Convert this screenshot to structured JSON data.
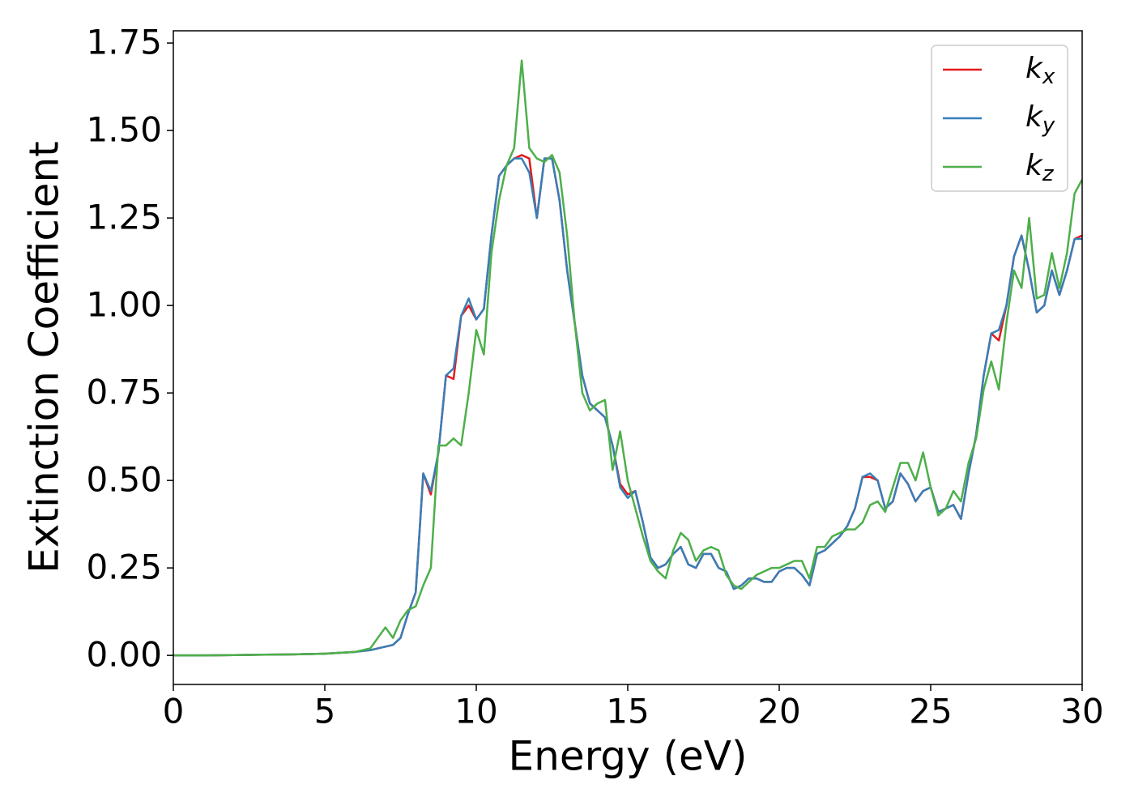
{
  "chart_data": {
    "type": "line",
    "xlabel": "Energy (eV)",
    "ylabel": "Extinction Coefficient",
    "x": [
      0,
      1,
      2,
      3,
      4,
      5,
      6,
      6.5,
      7,
      7.25,
      7.5,
      7.75,
      8,
      8.25,
      8.5,
      8.75,
      9,
      9.25,
      9.5,
      9.75,
      10,
      10.25,
      10.5,
      10.75,
      11,
      11.25,
      11.5,
      11.75,
      12,
      12.25,
      12.5,
      12.75,
      13,
      13.25,
      13.5,
      13.75,
      14,
      14.25,
      14.5,
      14.75,
      15,
      15.25,
      15.5,
      15.75,
      16,
      16.25,
      16.5,
      16.75,
      17,
      17.25,
      17.5,
      17.75,
      18,
      18.25,
      18.5,
      18.75,
      19,
      19.25,
      19.5,
      19.75,
      20,
      20.25,
      20.5,
      20.75,
      21,
      21.25,
      21.5,
      21.75,
      22,
      22.25,
      22.5,
      22.75,
      23,
      23.25,
      23.5,
      23.75,
      24,
      24.25,
      24.5,
      24.75,
      25,
      25.25,
      25.5,
      25.75,
      26,
      26.25,
      26.5,
      26.75,
      27,
      27.25,
      27.5,
      27.75,
      28,
      28.25,
      28.5,
      28.75,
      29,
      29.25,
      29.5,
      29.75,
      30
    ],
    "series": [
      {
        "name": "kx",
        "color": "#e41a1c",
        "values": [
          0,
          0,
          0.001,
          0.002,
          0.003,
          0.005,
          0.01,
          0.015,
          0.025,
          0.03,
          0.05,
          0.12,
          0.18,
          0.52,
          0.46,
          0.58,
          0.8,
          0.79,
          0.97,
          1.0,
          0.96,
          0.99,
          1.2,
          1.37,
          1.4,
          1.42,
          1.43,
          1.42,
          1.25,
          1.42,
          1.42,
          1.3,
          1.1,
          0.95,
          0.8,
          0.72,
          0.7,
          0.68,
          0.6,
          0.49,
          0.46,
          0.47,
          0.38,
          0.28,
          0.25,
          0.26,
          0.29,
          0.31,
          0.26,
          0.25,
          0.29,
          0.29,
          0.25,
          0.24,
          0.19,
          0.2,
          0.22,
          0.22,
          0.21,
          0.21,
          0.24,
          0.25,
          0.25,
          0.23,
          0.2,
          0.29,
          0.3,
          0.32,
          0.34,
          0.37,
          0.42,
          0.51,
          0.51,
          0.5,
          0.42,
          0.44,
          0.52,
          0.49,
          0.44,
          0.47,
          0.48,
          0.41,
          0.42,
          0.43,
          0.39,
          0.52,
          0.63,
          0.8,
          0.92,
          0.9,
          1.0,
          1.14,
          1.2,
          1.1,
          0.98,
          1.0,
          1.1,
          1.03,
          1.1,
          1.19,
          1.2
        ]
      },
      {
        "name": "ky",
        "color": "#377eb8",
        "values": [
          0,
          0,
          0.001,
          0.002,
          0.003,
          0.005,
          0.01,
          0.015,
          0.025,
          0.03,
          0.05,
          0.12,
          0.18,
          0.52,
          0.47,
          0.58,
          0.8,
          0.82,
          0.97,
          1.02,
          0.96,
          0.99,
          1.2,
          1.37,
          1.4,
          1.42,
          1.42,
          1.38,
          1.25,
          1.42,
          1.42,
          1.3,
          1.1,
          0.95,
          0.8,
          0.72,
          0.7,
          0.68,
          0.6,
          0.48,
          0.45,
          0.47,
          0.38,
          0.28,
          0.25,
          0.26,
          0.29,
          0.31,
          0.26,
          0.25,
          0.29,
          0.29,
          0.25,
          0.24,
          0.19,
          0.2,
          0.22,
          0.22,
          0.21,
          0.21,
          0.24,
          0.25,
          0.25,
          0.23,
          0.2,
          0.29,
          0.3,
          0.32,
          0.34,
          0.37,
          0.42,
          0.51,
          0.52,
          0.5,
          0.42,
          0.44,
          0.52,
          0.49,
          0.44,
          0.47,
          0.48,
          0.41,
          0.42,
          0.43,
          0.39,
          0.52,
          0.63,
          0.8,
          0.92,
          0.93,
          1.0,
          1.14,
          1.2,
          1.1,
          0.98,
          1.0,
          1.1,
          1.03,
          1.1,
          1.19,
          1.19
        ]
      },
      {
        "name": "kz",
        "color": "#4daf4a",
        "values": [
          0,
          0,
          0.001,
          0.002,
          0.003,
          0.005,
          0.01,
          0.02,
          0.08,
          0.05,
          0.1,
          0.13,
          0.14,
          0.2,
          0.25,
          0.6,
          0.6,
          0.62,
          0.6,
          0.75,
          0.93,
          0.86,
          1.15,
          1.3,
          1.4,
          1.45,
          1.7,
          1.45,
          1.42,
          1.41,
          1.43,
          1.38,
          1.2,
          0.95,
          0.75,
          0.7,
          0.72,
          0.73,
          0.53,
          0.64,
          0.5,
          0.42,
          0.34,
          0.27,
          0.24,
          0.22,
          0.3,
          0.35,
          0.33,
          0.27,
          0.3,
          0.31,
          0.3,
          0.23,
          0.2,
          0.19,
          0.21,
          0.23,
          0.24,
          0.25,
          0.25,
          0.26,
          0.27,
          0.27,
          0.22,
          0.31,
          0.31,
          0.34,
          0.35,
          0.36,
          0.36,
          0.38,
          0.43,
          0.44,
          0.41,
          0.48,
          0.55,
          0.55,
          0.5,
          0.58,
          0.48,
          0.4,
          0.42,
          0.47,
          0.44,
          0.55,
          0.62,
          0.76,
          0.84,
          0.76,
          0.95,
          1.1,
          1.05,
          1.25,
          1.02,
          1.03,
          1.15,
          1.05,
          1.15,
          1.32,
          1.36
        ]
      }
    ],
    "xlim": [
      0,
      30
    ],
    "xticks": [
      0,
      5,
      10,
      15,
      20,
      25,
      30
    ],
    "ylim": [
      -0.083,
      1.785
    ],
    "yticks": [
      {
        "value": 0,
        "label": "0.00"
      },
      0.25,
      {
        "value": 0.5,
        "label": "0.50"
      },
      0.75,
      {
        "value": 1,
        "label": "1.00"
      },
      1.25,
      {
        "value": 1.5,
        "label": "1.50"
      },
      1.75
    ],
    "legend": "upper right"
  }
}
